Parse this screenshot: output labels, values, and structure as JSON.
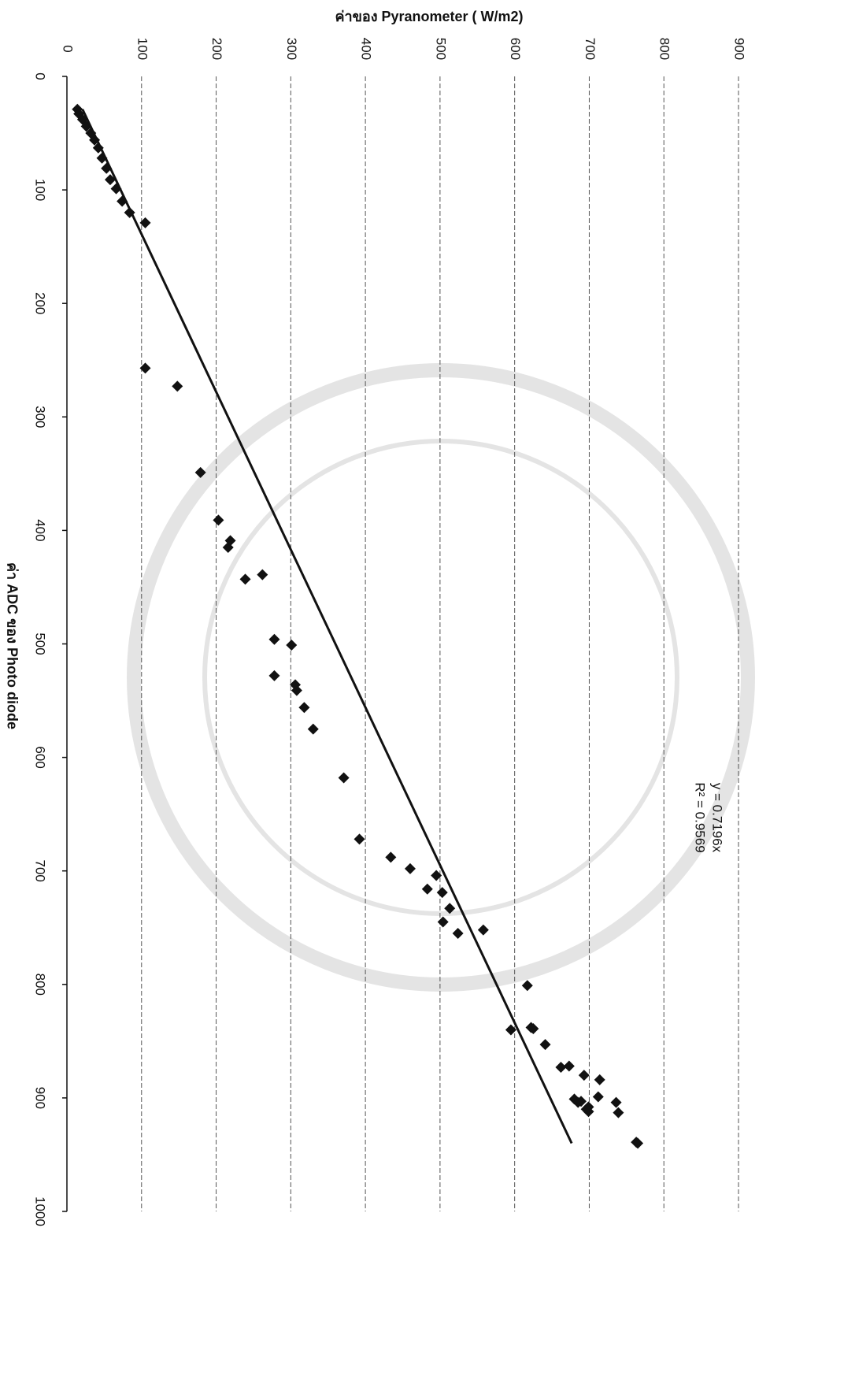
{
  "chart_data": {
    "type": "scatter",
    "orientation": "rotated-90",
    "title": null,
    "x_label": "ค่า ADC ของ Photo diode",
    "y_label": "ค่าของ Pyranometer ( W/m2)",
    "xlim": [
      0,
      1000
    ],
    "xticks": [
      0,
      100,
      200,
      300,
      400,
      500,
      600,
      700,
      800,
      900,
      1000
    ],
    "ylim": [
      0,
      900
    ],
    "yticks": [
      0,
      100,
      200,
      300,
      400,
      500,
      600,
      700,
      800,
      900
    ],
    "grid": true,
    "color": "#111111",
    "x": [
      29,
      33,
      38,
      44,
      50,
      56,
      63,
      72,
      81,
      91,
      99,
      110,
      120,
      129,
      257,
      273,
      349,
      391,
      415,
      409,
      443,
      439,
      496,
      528,
      501,
      536,
      541,
      556,
      575,
      618,
      672,
      688,
      698,
      716,
      704,
      719,
      745,
      733,
      755,
      752,
      801,
      840,
      838,
      839,
      853,
      873,
      872,
      880,
      884,
      901,
      904,
      903,
      910,
      908,
      912,
      899,
      904,
      913,
      939,
      940
    ],
    "values": [
      14,
      16,
      21,
      26,
      32,
      37,
      42,
      47,
      53,
      58,
      66,
      74,
      84,
      105,
      105,
      148,
      179,
      203,
      216,
      219,
      239,
      262,
      278,
      278,
      301,
      306,
      308,
      318,
      330,
      371,
      392,
      434,
      460,
      483,
      495,
      503,
      504,
      513,
      524,
      558,
      617,
      595,
      622,
      625,
      641,
      662,
      673,
      693,
      714,
      680,
      685,
      689,
      696,
      699,
      699,
      712,
      736,
      739,
      763,
      765
    ],
    "trendline": {
      "slope": 0.7196,
      "xlim": [
        29,
        940
      ],
      "equation": "y = 0.7196x",
      "r2_label": "R² = 0.9569"
    }
  }
}
